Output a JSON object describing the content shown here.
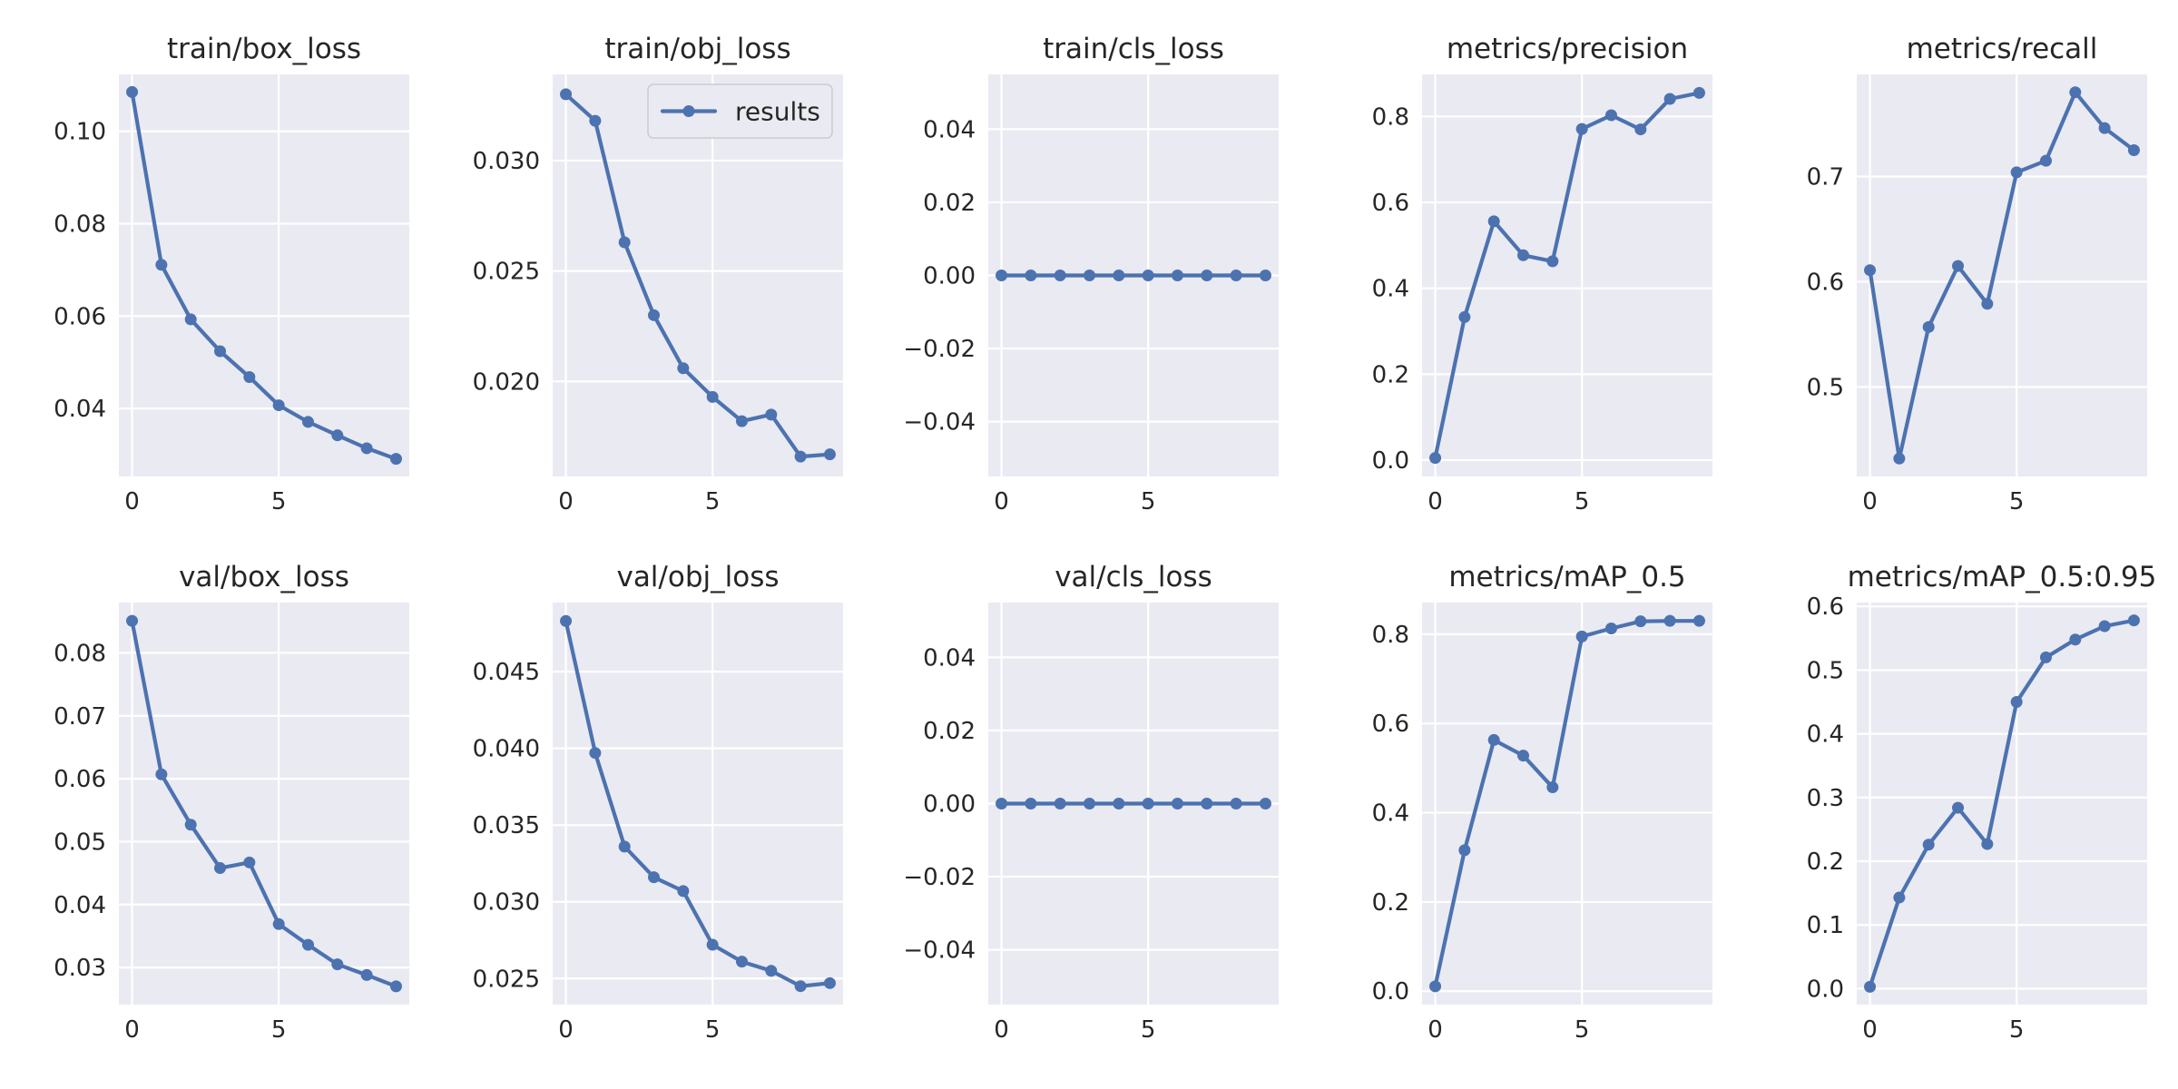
{
  "figure": {
    "background": "#ffffff",
    "axes_background": "#eaeaf2",
    "grid_color": "#ffffff",
    "line_color": "#4c72b0",
    "text_color": "#262626"
  },
  "legend": {
    "label": "results",
    "location": "upper-right",
    "panel": 1
  },
  "chart_data": [
    {
      "type": "line",
      "title": "train/box_loss",
      "x": [
        0,
        1,
        2,
        3,
        4,
        5,
        6,
        7,
        8,
        9
      ],
      "series": [
        {
          "name": "results",
          "values": [
            0.1085,
            0.0711,
            0.0593,
            0.0524,
            0.0468,
            0.0407,
            0.0371,
            0.0342,
            0.0314,
            0.0291
          ]
        }
      ],
      "ylim": [
        0.0253,
        0.1123
      ],
      "xlim": [
        -0.45,
        9.45
      ],
      "yticks": [
        0.04,
        0.06,
        0.08,
        0.1
      ],
      "ytick_labels": [
        "0.04",
        "0.06",
        "0.08",
        "0.10"
      ],
      "xticks": [
        0,
        5
      ],
      "xtick_labels": [
        "0",
        "5"
      ]
    },
    {
      "type": "line",
      "title": "train/obj_loss",
      "x": [
        0,
        1,
        2,
        3,
        4,
        5,
        6,
        7,
        8,
        9
      ],
      "series": [
        {
          "name": "results",
          "values": [
            0.033,
            0.0318,
            0.0263,
            0.023,
            0.0206,
            0.0193,
            0.0182,
            0.0185,
            0.0166,
            0.0167
          ]
        }
      ],
      "ylim": [
        0.0157,
        0.0339
      ],
      "xlim": [
        -0.45,
        9.45
      ],
      "yticks": [
        0.02,
        0.025,
        0.03
      ],
      "ytick_labels": [
        "0.020",
        "0.025",
        "0.030"
      ],
      "xticks": [
        0,
        5
      ],
      "xtick_labels": [
        "0",
        "5"
      ]
    },
    {
      "type": "line",
      "title": "train/cls_loss",
      "x": [
        0,
        1,
        2,
        3,
        4,
        5,
        6,
        7,
        8,
        9
      ],
      "series": [
        {
          "name": "results",
          "values": [
            0,
            0,
            0,
            0,
            0,
            0,
            0,
            0,
            0,
            0
          ]
        }
      ],
      "ylim": [
        -0.055,
        0.055
      ],
      "xlim": [
        -0.45,
        9.45
      ],
      "yticks": [
        -0.04,
        -0.02,
        0.0,
        0.02,
        0.04
      ],
      "ytick_labels": [
        "−0.04",
        "−0.02",
        "0.00",
        "0.02",
        "0.04"
      ],
      "xticks": [
        0,
        5
      ],
      "xtick_labels": [
        "0",
        "5"
      ]
    },
    {
      "type": "line",
      "title": "metrics/precision",
      "x": [
        0,
        1,
        2,
        3,
        4,
        5,
        6,
        7,
        8,
        9
      ],
      "series": [
        {
          "name": "results",
          "values": [
            0.005,
            0.333,
            0.556,
            0.477,
            0.463,
            0.771,
            0.803,
            0.77,
            0.841,
            0.855
          ]
        }
      ],
      "ylim": [
        -0.038,
        0.898
      ],
      "xlim": [
        -0.45,
        9.45
      ],
      "yticks": [
        0.0,
        0.2,
        0.4,
        0.6,
        0.8
      ],
      "ytick_labels": [
        "0.0",
        "0.2",
        "0.4",
        "0.6",
        "0.8"
      ],
      "xticks": [
        0,
        5
      ],
      "xtick_labels": [
        "0",
        "5"
      ]
    },
    {
      "type": "line",
      "title": "metrics/recall",
      "x": [
        0,
        1,
        2,
        3,
        4,
        5,
        6,
        7,
        8,
        9
      ],
      "series": [
        {
          "name": "results",
          "values": [
            0.611,
            0.432,
            0.557,
            0.615,
            0.579,
            0.704,
            0.715,
            0.78,
            0.746,
            0.725
          ]
        }
      ],
      "ylim": [
        0.415,
        0.797
      ],
      "xlim": [
        -0.45,
        9.45
      ],
      "yticks": [
        0.5,
        0.6,
        0.7
      ],
      "ytick_labels": [
        "0.5",
        "0.6",
        "0.7"
      ],
      "xticks": [
        0,
        5
      ],
      "xtick_labels": [
        "0",
        "5"
      ]
    },
    {
      "type": "line",
      "title": "val/box_loss",
      "x": [
        0,
        1,
        2,
        3,
        4,
        5,
        6,
        7,
        8,
        9
      ],
      "series": [
        {
          "name": "results",
          "values": [
            0.0851,
            0.0607,
            0.0527,
            0.0458,
            0.0467,
            0.0369,
            0.0336,
            0.0305,
            0.0288,
            0.027
          ]
        }
      ],
      "ylim": [
        0.0241,
        0.088
      ],
      "xlim": [
        -0.45,
        9.45
      ],
      "yticks": [
        0.03,
        0.04,
        0.05,
        0.06,
        0.07,
        0.08
      ],
      "ytick_labels": [
        "0.03",
        "0.04",
        "0.05",
        "0.06",
        "0.07",
        "0.08"
      ],
      "xticks": [
        0,
        5
      ],
      "xtick_labels": [
        "0",
        "5"
      ]
    },
    {
      "type": "line",
      "title": "val/obj_loss",
      "x": [
        0,
        1,
        2,
        3,
        4,
        5,
        6,
        7,
        8,
        9
      ],
      "series": [
        {
          "name": "results",
          "values": [
            0.0483,
            0.0397,
            0.0336,
            0.0316,
            0.0307,
            0.0272,
            0.0261,
            0.0255,
            0.0245,
            0.0247
          ]
        }
      ],
      "ylim": [
        0.0233,
        0.0495
      ],
      "xlim": [
        -0.45,
        9.45
      ],
      "yticks": [
        0.025,
        0.03,
        0.035,
        0.04,
        0.045
      ],
      "ytick_labels": [
        "0.025",
        "0.030",
        "0.035",
        "0.040",
        "0.045"
      ],
      "xticks": [
        0,
        5
      ],
      "xtick_labels": [
        "0",
        "5"
      ]
    },
    {
      "type": "line",
      "title": "val/cls_loss",
      "x": [
        0,
        1,
        2,
        3,
        4,
        5,
        6,
        7,
        8,
        9
      ],
      "series": [
        {
          "name": "results",
          "values": [
            0,
            0,
            0,
            0,
            0,
            0,
            0,
            0,
            0,
            0
          ]
        }
      ],
      "ylim": [
        -0.055,
        0.055
      ],
      "xlim": [
        -0.45,
        9.45
      ],
      "yticks": [
        -0.04,
        -0.02,
        0.0,
        0.02,
        0.04
      ],
      "ytick_labels": [
        "−0.04",
        "−0.02",
        "0.00",
        "0.02",
        "0.04"
      ],
      "xticks": [
        0,
        5
      ],
      "xtick_labels": [
        "0",
        "5"
      ]
    },
    {
      "type": "line",
      "title": "metrics/mAP_0.5",
      "x": [
        0,
        1,
        2,
        3,
        4,
        5,
        6,
        7,
        8,
        9
      ],
      "series": [
        {
          "name": "results",
          "values": [
            0.011,
            0.316,
            0.563,
            0.528,
            0.457,
            0.795,
            0.813,
            0.829,
            0.83,
            0.83
          ]
        }
      ],
      "ylim": [
        -0.03,
        0.871
      ],
      "xlim": [
        -0.45,
        9.45
      ],
      "yticks": [
        0.0,
        0.2,
        0.4,
        0.6,
        0.8
      ],
      "ytick_labels": [
        "0.0",
        "0.2",
        "0.4",
        "0.6",
        "0.8"
      ],
      "xticks": [
        0,
        5
      ],
      "xtick_labels": [
        "0",
        "5"
      ]
    },
    {
      "type": "line",
      "title": "metrics/mAP_0.5:0.95",
      "x": [
        0,
        1,
        2,
        3,
        4,
        5,
        6,
        7,
        8,
        9
      ],
      "series": [
        {
          "name": "results",
          "values": [
            0.003,
            0.143,
            0.226,
            0.284,
            0.227,
            0.45,
            0.52,
            0.548,
            0.569,
            0.578
          ]
        }
      ],
      "ylim": [
        -0.025,
        0.606
      ],
      "xlim": [
        -0.45,
        9.45
      ],
      "yticks": [
        0.0,
        0.1,
        0.2,
        0.3,
        0.4,
        0.5,
        0.6
      ],
      "ytick_labels": [
        "0.0",
        "0.1",
        "0.2",
        "0.3",
        "0.4",
        "0.5",
        "0.6"
      ],
      "xticks": [
        0,
        5
      ],
      "xtick_labels": [
        "0",
        "5"
      ]
    }
  ]
}
